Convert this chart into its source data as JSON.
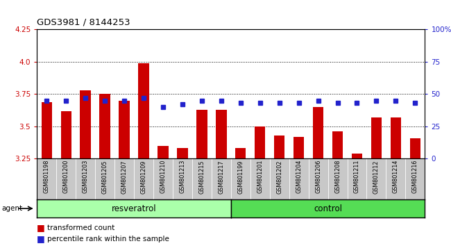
{
  "title": "GDS3981 / 8144253",
  "categories": [
    "GSM801198",
    "GSM801200",
    "GSM801203",
    "GSM801205",
    "GSM801207",
    "GSM801209",
    "GSM801210",
    "GSM801213",
    "GSM801215",
    "GSM801217",
    "GSM801199",
    "GSM801201",
    "GSM801202",
    "GSM801204",
    "GSM801206",
    "GSM801208",
    "GSM801211",
    "GSM801212",
    "GSM801214",
    "GSM801216"
  ],
  "bar_values": [
    3.69,
    3.62,
    3.78,
    3.75,
    3.7,
    3.99,
    3.35,
    3.33,
    3.63,
    3.63,
    3.33,
    3.5,
    3.43,
    3.42,
    3.65,
    3.46,
    3.29,
    3.57,
    3.57,
    3.41
  ],
  "dot_values": [
    45,
    45,
    47,
    45,
    45,
    47,
    40,
    42,
    45,
    45,
    43,
    43,
    43,
    43,
    45,
    43,
    43,
    45,
    45,
    43
  ],
  "bar_color": "#cc0000",
  "dot_color": "#2222cc",
  "ylim_left": [
    3.25,
    4.25
  ],
  "ylim_right": [
    0,
    100
  ],
  "yticks_left": [
    3.25,
    3.5,
    3.75,
    4.0,
    4.25
  ],
  "yticks_right": [
    0,
    25,
    50,
    75,
    100
  ],
  "ytick_labels_right": [
    "0",
    "25",
    "50",
    "75",
    "100%"
  ],
  "grid_lines": [
    3.5,
    3.75,
    4.0
  ],
  "agent_label": "agent",
  "resveratrol_label": "resveratrol",
  "control_label": "control",
  "legend_bar_label": "transformed count",
  "legend_dot_label": "percentile rank within the sample",
  "bar_width": 0.55,
  "background_color": "#ffffff",
  "tick_area_color": "#c8c8c8",
  "resveratrol_color": "#aaffaa",
  "control_color": "#55dd55",
  "n_resveratrol": 10,
  "n_control": 10
}
